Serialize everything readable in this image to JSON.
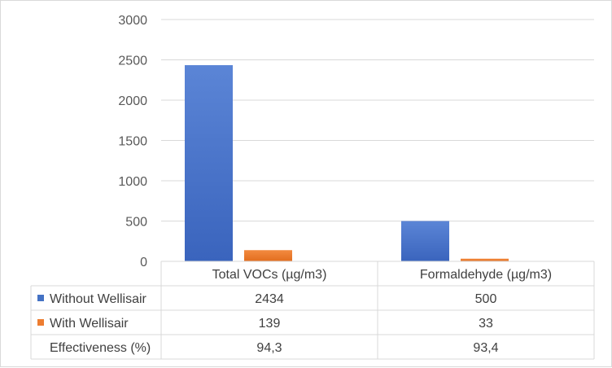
{
  "chart_data": {
    "type": "bar",
    "categories": [
      "Total VOCs  (µg/m3)",
      "Formaldehyde  (µg/m3)"
    ],
    "series": [
      {
        "name": "Without Wellisair",
        "values": [
          2434,
          500
        ],
        "color": "#4472c4"
      },
      {
        "name": "With Wellisair",
        "values": [
          139,
          33
        ],
        "color": "#ed7d31"
      }
    ],
    "table_rows": [
      {
        "label": "Without Wellisair",
        "values": [
          "2434",
          "500"
        ]
      },
      {
        "label": "With Wellisair",
        "values": [
          "139",
          "33"
        ]
      },
      {
        "label": "Effectiveness (%)",
        "values": [
          "94,3",
          "93,4"
        ]
      }
    ],
    "y_ticks": [
      "0",
      "500",
      "1000",
      "1500",
      "2000",
      "2500",
      "3000"
    ],
    "ylim": [
      0,
      3000
    ],
    "grid": true,
    "legend": "data table"
  }
}
